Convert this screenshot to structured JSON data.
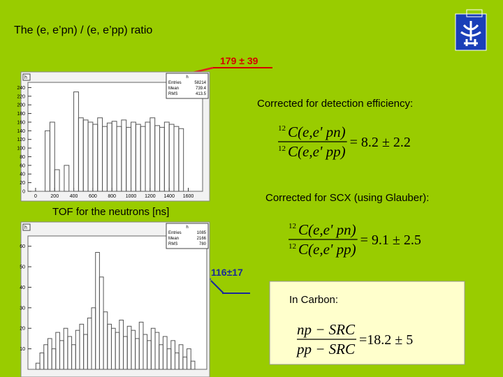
{
  "header": {
    "title": "The (e, e’pn) / (e, e’pp)  ratio"
  },
  "annotations": {
    "top_ratio": "179 ± 39",
    "bottom_ratio": "116±17",
    "efficiency": "Corrected for detection efficiency:",
    "scx": "Corrected for SCX (using Glauber):",
    "tof": "TOF for the neutrons [ns]",
    "carbon": "In Carbon:"
  },
  "formulas": [
    {
      "prefix": "12",
      "num": "C(e,e' pn)",
      "den": "C(e,e' pp)",
      "result": "= 8.2 ± 2.2"
    },
    {
      "prefix": "12",
      "num": "C(e,e' pn)",
      "den": "C(e,e' pp)",
      "result": "= 9.1 ± 2.5"
    },
    {
      "num": "np − SRC",
      "den": "pp − SRC",
      "result": "=18.2 ± 5"
    }
  ],
  "histograms": [
    {
      "name": "h",
      "stats": [
        {
          "label": "Entries",
          "value": "58214"
        },
        {
          "label": "Mean",
          "value": "739.4"
        },
        {
          "label": "RMS",
          "value": "413.5"
        }
      ],
      "xlim": [
        -80,
        1750
      ],
      "ylim": [
        0,
        252
      ],
      "xticks": [
        0,
        200,
        400,
        600,
        800,
        1000,
        1200,
        1400,
        1600
      ],
      "yticks": [
        0,
        20,
        40,
        60,
        80,
        100,
        120,
        140,
        160,
        180,
        200,
        220,
        240
      ],
      "bins": [
        0,
        50,
        100,
        150,
        200,
        250,
        300,
        350,
        400,
        450,
        500,
        550,
        600,
        650,
        700,
        750,
        800,
        850,
        900,
        950,
        1000,
        1050,
        1100,
        1150,
        1200,
        1250,
        1300,
        1350,
        1400,
        1450,
        1500,
        1550,
        1600,
        1650,
        1700
      ],
      "values": [
        0,
        0,
        140,
        160,
        50,
        0,
        60,
        0,
        230,
        170,
        165,
        160,
        155,
        170,
        150,
        158,
        162,
        150,
        165,
        148,
        160,
        155,
        150,
        160,
        170,
        152,
        148,
        160,
        155,
        150,
        145,
        0,
        0,
        0
      ]
    },
    {
      "name": "h",
      "stats": [
        {
          "label": "Entries",
          "value": "1085"
        },
        {
          "label": "Mean",
          "value": "2166"
        },
        {
          "label": "RMS",
          "value": "780"
        }
      ],
      "ylim": [
        0,
        65
      ],
      "yticks": [
        10,
        20,
        30,
        40,
        50,
        60
      ],
      "values": [
        0,
        0,
        3,
        8,
        12,
        15,
        10,
        18,
        14,
        20,
        16,
        12,
        19,
        22,
        17,
        25,
        30,
        57,
        45,
        28,
        22,
        20,
        18,
        24,
        16,
        21,
        19,
        15,
        23,
        17,
        14,
        20,
        18,
        12,
        16,
        10,
        14,
        8,
        12,
        6,
        10,
        4,
        0,
        0,
        0
      ]
    }
  ]
}
